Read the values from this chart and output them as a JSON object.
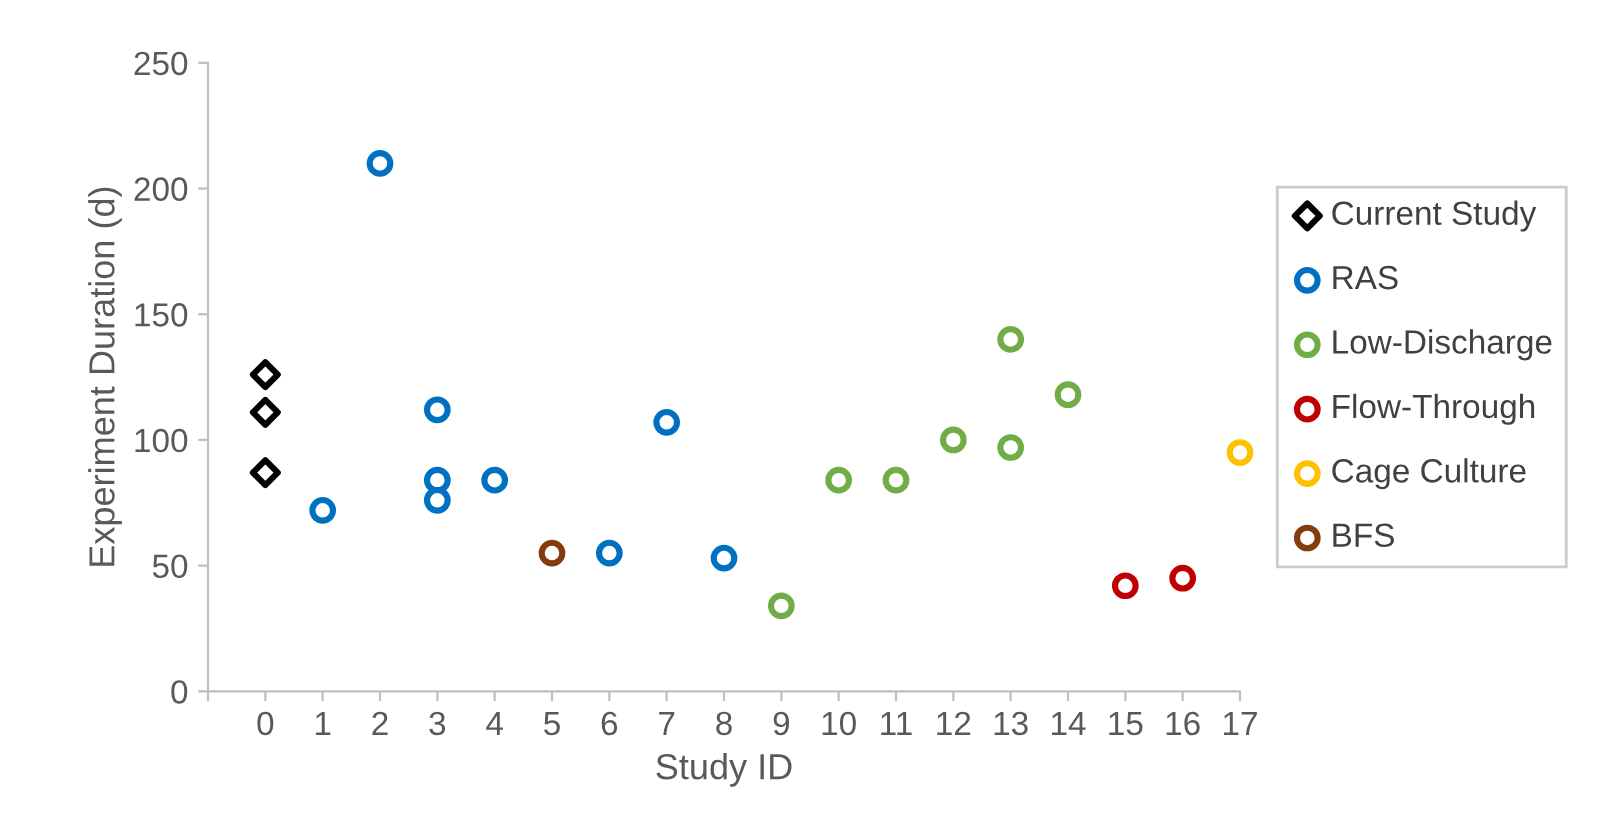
{
  "chart_data": {
    "type": "scatter",
    "xlabel": "Study ID",
    "ylabel": "Experiment Duration (d)",
    "xlim": [
      -1,
      17
    ],
    "xticks": [
      {
        "value": -1,
        "label": null
      },
      0,
      1,
      2,
      3,
      4,
      5,
      6,
      7,
      8,
      9,
      10,
      11,
      12,
      13,
      14,
      15,
      16,
      17
    ],
    "ylim": [
      0,
      250
    ],
    "yticks": [
      0,
      50,
      100,
      150,
      200,
      250
    ],
    "grid": false,
    "legend": "right",
    "series": [
      {
        "name": "Current Study",
        "color": "#000000",
        "marker": "diamond",
        "x": [
          0,
          0,
          0
        ],
        "values": [
          126,
          111,
          87
        ]
      },
      {
        "name": "RAS",
        "color": "#0070c0",
        "marker": "circle",
        "x": [
          1,
          2,
          3,
          3,
          3,
          4,
          6,
          7,
          8
        ],
        "values": [
          72,
          210,
          112,
          84,
          76,
          84,
          55,
          107,
          53
        ]
      },
      {
        "name": "Low-Discharge",
        "color": "#70ad47",
        "marker": "circle",
        "x": [
          9,
          10,
          11,
          12,
          13,
          13,
          14
        ],
        "values": [
          34,
          84,
          84,
          100,
          140,
          97,
          118
        ]
      },
      {
        "name": "Flow-Through",
        "color": "#c00000",
        "marker": "circle",
        "x": [
          15,
          16
        ],
        "values": [
          42,
          45
        ]
      },
      {
        "name": "Cage Culture",
        "color": "#ffc000",
        "marker": "circle",
        "x": [
          17
        ],
        "values": [
          95
        ]
      },
      {
        "name": "BFS",
        "color": "#843c0c",
        "marker": "circle",
        "x": [
          5
        ],
        "values": [
          55
        ]
      }
    ]
  }
}
